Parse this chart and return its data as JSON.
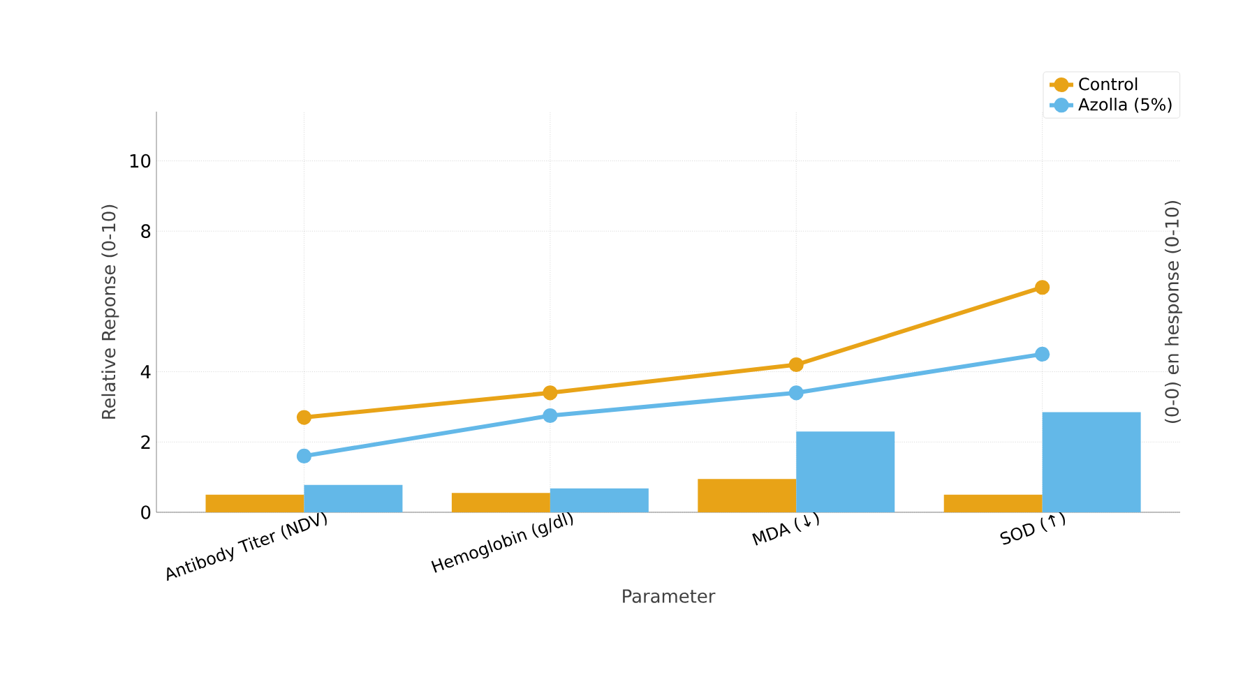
{
  "chart_data": {
    "type": "bar",
    "xlabel": "Parameter",
    "ylabel": "Relative Reponse (0-10)",
    "y2label": "(0-0) en hesponse (0-10)",
    "categories": [
      "Antibody Titer (NDV)",
      "Hemoglobin (g/dl)",
      "MDA (↓)",
      "SOD (↑)"
    ],
    "series": [
      {
        "name": "Control",
        "type": "line",
        "color": "#e8a317",
        "values": [
          2.7,
          3.4,
          4.2,
          6.4
        ]
      },
      {
        "name": "Azolla (5%)",
        "type": "line",
        "color": "#63b8e8",
        "values": [
          1.6,
          2.75,
          3.4,
          4.5
        ]
      },
      {
        "color": "#e8a317",
        "values": [
          0.5,
          0.55,
          0.95,
          0.5
        ]
      },
      {
        "color": "#63b8e8",
        "values": [
          0.78,
          0.68,
          2.3,
          2.85
        ]
      }
    ],
    "ylim": [
      0,
      11.4
    ],
    "yticks": [
      0,
      2,
      4,
      8,
      10
    ],
    "grid": true,
    "legend": "top right",
    "marker": "circle",
    "line_style": "solid"
  }
}
